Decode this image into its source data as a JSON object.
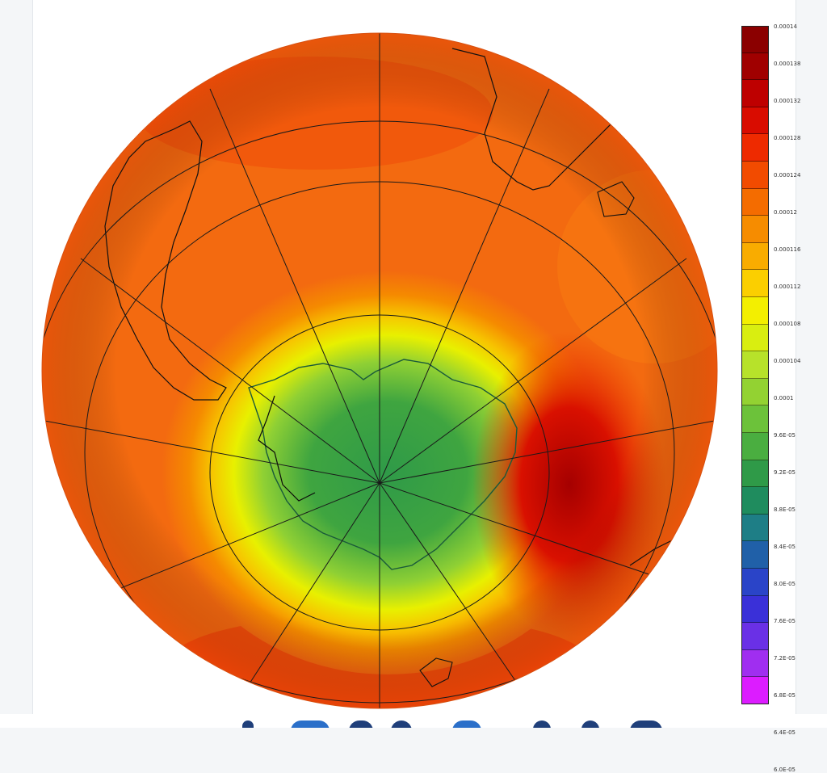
{
  "legend": {
    "labels": [
      "0.00014",
      "0.000138",
      "0.000132",
      "0.000128",
      "0.000124",
      "0.00012",
      "0.000116",
      "0.000112",
      "0.000108",
      "0.000104",
      "0.0001",
      "9.6E-05",
      "9.2E-05",
      "8.8E-05",
      "8.4E-05",
      "8.0E-05",
      "7.6E-05",
      "7.2E-05",
      "6.8E-05",
      "6.4E-05",
      "6.0E-05"
    ],
    "colors": [
      "#8b0000",
      "#a00000",
      "#be0000",
      "#d90c00",
      "#ee2a00",
      "#f24b00",
      "#f46c00",
      "#f68c00",
      "#f9ac00",
      "#fbcf00",
      "#f3ef00",
      "#d9ee10",
      "#b7e22a",
      "#93d232",
      "#6cc23a",
      "#4aae40",
      "#2f9a48",
      "#1f8c5e",
      "#1e7e86",
      "#2060a8",
      "#2a44c8",
      "#3a30d8",
      "#6a30e6",
      "#a02ef0",
      "#dc1cff"
    ]
  },
  "map": {
    "projection": "orthographic-south-polar",
    "fill_outer": "#f36a10",
    "fill_ring": "#f7e20a",
    "fill_center": "#3fa540",
    "grid_color": "#1a1a1a",
    "coast_color": "#0a0a0a"
  }
}
